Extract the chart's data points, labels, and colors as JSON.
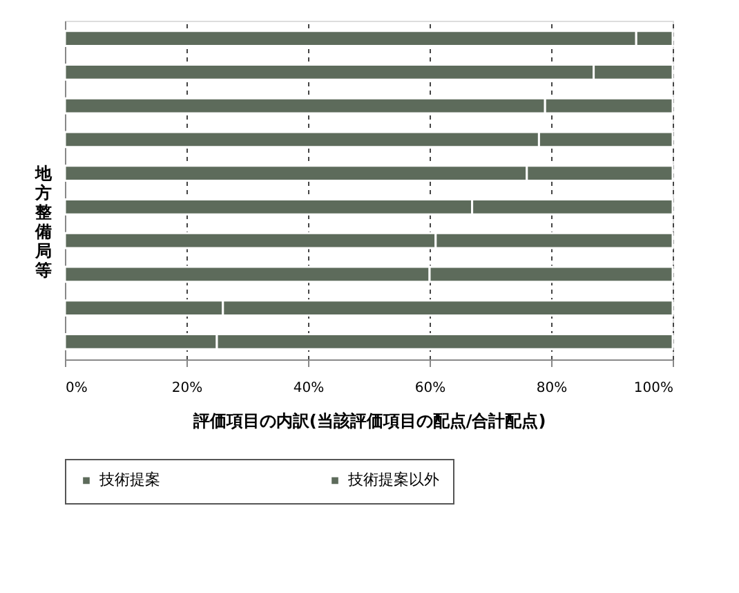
{
  "chart_data": {
    "type": "bar",
    "orientation": "horizontal",
    "stacked": true,
    "xlabel": "評価項目の内訳(当該評価項目の配点/合計配点)",
    "ylabel": "地方整備局等",
    "categories": [
      null,
      null,
      null,
      null,
      null,
      null,
      null,
      null,
      null,
      null
    ],
    "series": [
      {
        "name": "技術提案",
        "color": "#5d6b5b",
        "values": [
          94,
          87,
          79,
          78,
          76,
          67,
          61,
          60,
          26,
          25
        ]
      },
      {
        "name": "技術提案以外",
        "color": "#5d6b5b",
        "values": [
          6,
          13,
          21,
          22,
          24,
          33,
          39,
          40,
          74,
          75
        ]
      }
    ],
    "xlim": [
      0,
      100
    ],
    "xticks": [
      {
        "value": 0,
        "label": "0%"
      },
      {
        "value": 20,
        "label": "20%"
      },
      {
        "value": 40,
        "label": "40%"
      },
      {
        "value": 60,
        "label": "60%"
      },
      {
        "value": 80,
        "label": "80%"
      },
      {
        "value": 100,
        "label": "100%"
      }
    ],
    "grid": "x",
    "legend": "bottom"
  }
}
